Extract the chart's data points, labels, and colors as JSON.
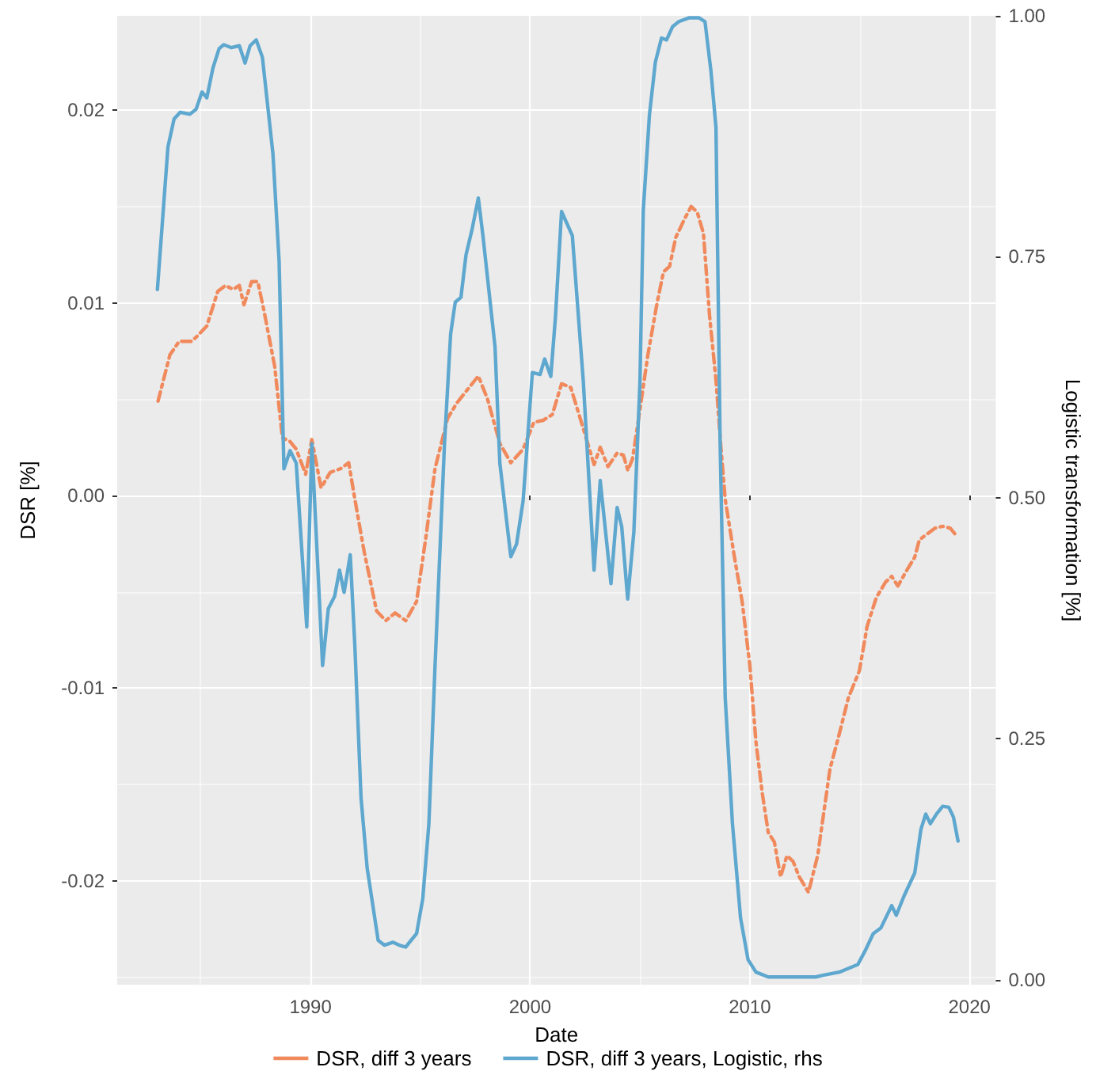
{
  "chart_data": {
    "type": "line",
    "xlabel": "Date",
    "ylabel": "DSR [%]",
    "y2label": "Logistic transformation [%]",
    "xlim": [
      1981.2,
      2021.2
    ],
    "xticks": [
      1990,
      2000,
      2010,
      2020
    ],
    "ylim": [
      -0.0254,
      0.0249
    ],
    "yticks": [
      -0.02,
      -0.01,
      {
        "value": 0,
        "label": "0.00"
      },
      0.01,
      0.02
    ],
    "y2lim": [
      -0.005,
      1.0
    ],
    "y2ticks": [
      {
        "value": 0,
        "label": "0.00"
      },
      0.25,
      {
        "value": 0.5,
        "label": "0.50"
      },
      0.75,
      {
        "value": 1,
        "label": "1.00"
      }
    ],
    "grid": true,
    "legend": "bottom",
    "marker": "none",
    "series": [
      {
        "name": "DSR, diff 3 years",
        "color": "#f08a5d",
        "line_style": "dashed",
        "x": [
          1983.06,
          1983.6,
          1984.02,
          1984.58,
          1984.87,
          1985.28,
          1985.78,
          1986.13,
          1986.47,
          1986.76,
          1986.97,
          1987.32,
          1987.6,
          1987.88,
          1988.37,
          1988.72,
          1989.07,
          1989.35,
          1989.78,
          1990.06,
          1990.48,
          1990.9,
          1991.39,
          1991.74,
          1992.02,
          1992.44,
          1993.01,
          1993.43,
          1993.85,
          1994.34,
          1994.83,
          1995.25,
          1995.67,
          1996.24,
          1996.66,
          1997.22,
          1997.64,
          1998.06,
          1998.62,
          1999.12,
          1999.68,
          2000.17,
          2000.59,
          2001.01,
          2001.43,
          2001.85,
          2002.28,
          2002.7,
          2002.91,
          2003.19,
          2003.54,
          2003.96,
          2004.24,
          2004.45,
          2004.66,
          2004.94,
          2005.36,
          2005.78,
          2006.07,
          2006.35,
          2006.63,
          2007.05,
          2007.33,
          2007.61,
          2007.89,
          2008.17,
          2008.46,
          2008.67,
          2008.88,
          2009.3,
          2009.65,
          2010.0,
          2010.28,
          2010.56,
          2010.84,
          2011.12,
          2011.4,
          2011.69,
          2011.97,
          2012.25,
          2012.67,
          2013.09,
          2013.65,
          2014.07,
          2014.49,
          2014.99,
          2015.34,
          2015.76,
          2016.18,
          2016.46,
          2016.74,
          2017.09,
          2017.51,
          2017.72,
          2018.08,
          2018.43,
          2018.78,
          2019.13,
          2019.41
        ],
        "values": [
          0.0049,
          0.0073,
          0.008,
          0.008,
          0.0083,
          0.0088,
          0.0106,
          0.0109,
          0.0107,
          0.0109,
          0.0099,
          0.0111,
          0.0111,
          0.0096,
          0.0067,
          0.003,
          0.0028,
          0.0024,
          0.0011,
          0.0029,
          0.0004,
          0.0012,
          0.0014,
          0.0017,
          -0.0002,
          -0.0029,
          -0.006,
          -0.0065,
          -0.0061,
          -0.0065,
          -0.0055,
          -0.0022,
          0.0014,
          0.004,
          0.0048,
          0.0056,
          0.0062,
          0.005,
          0.0027,
          0.0017,
          0.0024,
          0.0038,
          0.0039,
          0.0042,
          0.0058,
          0.0056,
          0.004,
          0.0024,
          0.0016,
          0.0025,
          0.0015,
          0.0022,
          0.0021,
          0.0013,
          0.0019,
          0.004,
          0.0073,
          0.01,
          0.0116,
          0.0119,
          0.0134,
          0.0144,
          0.015,
          0.0147,
          0.0136,
          0.0093,
          0.006,
          0.0027,
          -0.0002,
          -0.0032,
          -0.0055,
          -0.0088,
          -0.0128,
          -0.0154,
          -0.0175,
          -0.018,
          -0.0198,
          -0.0187,
          -0.019,
          -0.0198,
          -0.0206,
          -0.0187,
          -0.0142,
          -0.0124,
          -0.0105,
          -0.0091,
          -0.0068,
          -0.0053,
          -0.0045,
          -0.0042,
          -0.0047,
          -0.004,
          -0.0032,
          -0.0023,
          -0.002,
          -0.0017,
          -0.0016,
          -0.0017,
          -0.0021
        ]
      },
      {
        "name": "DSR, diff 3 years, Logistic, rhs",
        "color": "#5ea7cf",
        "line_style": "solid",
        "axis": "y2",
        "x": [
          1983.03,
          1983.51,
          1983.79,
          1984.07,
          1984.51,
          1984.79,
          1985.06,
          1985.28,
          1985.56,
          1985.84,
          1986.05,
          1986.4,
          1986.76,
          1987.02,
          1987.25,
          1987.53,
          1987.81,
          1988.29,
          1988.57,
          1988.79,
          1989.07,
          1989.35,
          1989.83,
          1990.06,
          1990.55,
          1990.81,
          1991.1,
          1991.32,
          1991.53,
          1991.81,
          1992.02,
          1992.3,
          1992.58,
          1993.08,
          1993.36,
          1993.76,
          1994.04,
          1994.33,
          1994.83,
          1995.11,
          1995.39,
          1995.67,
          1996.1,
          1996.38,
          1996.59,
          1996.85,
          1997.08,
          1997.36,
          1997.64,
          1997.85,
          1998.4,
          1998.62,
          1999.12,
          1999.38,
          1999.68,
          2000.1,
          2000.45,
          2000.66,
          2000.94,
          2001.15,
          2001.43,
          2001.92,
          2002.42,
          2002.91,
          2003.19,
          2003.68,
          2003.96,
          2004.17,
          2004.44,
          2004.72,
          2005.0,
          2005.15,
          2005.43,
          2005.7,
          2005.98,
          2006.21,
          2006.49,
          2006.77,
          2007.25,
          2007.68,
          2007.96,
          2008.23,
          2008.46,
          2008.65,
          2008.88,
          2009.21,
          2009.58,
          2009.92,
          2010.28,
          2010.84,
          2012.0,
          2013.0,
          2013.37,
          2014.07,
          2014.92,
          2015.27,
          2015.62,
          2015.97,
          2016.46,
          2016.67,
          2017.02,
          2017.51,
          2017.79,
          2018.01,
          2018.22,
          2018.5,
          2018.78,
          2019.06,
          2019.27,
          2019.48
        ],
        "values": [
          0.716,
          0.864,
          0.893,
          0.9,
          0.898,
          0.903,
          0.921,
          0.915,
          0.946,
          0.966,
          0.97,
          0.967,
          0.969,
          0.951,
          0.969,
          0.975,
          0.957,
          0.857,
          0.746,
          0.53,
          0.549,
          0.536,
          0.366,
          0.556,
          0.326,
          0.385,
          0.398,
          0.425,
          0.402,
          0.441,
          0.346,
          0.189,
          0.116,
          0.041,
          0.036,
          0.039,
          0.036,
          0.034,
          0.048,
          0.084,
          0.162,
          0.326,
          0.556,
          0.67,
          0.703,
          0.708,
          0.752,
          0.779,
          0.811,
          0.772,
          0.657,
          0.536,
          0.439,
          0.452,
          0.497,
          0.63,
          0.628,
          0.644,
          0.626,
          0.687,
          0.797,
          0.772,
          0.621,
          0.425,
          0.518,
          0.411,
          0.49,
          0.47,
          0.395,
          0.464,
          0.621,
          0.798,
          0.897,
          0.952,
          0.977,
          0.975,
          0.989,
          0.994,
          0.998,
          0.998,
          0.994,
          0.943,
          0.884,
          0.556,
          0.293,
          0.162,
          0.064,
          0.021,
          0.008,
          0.003,
          0.003,
          0.003,
          0.005,
          0.008,
          0.016,
          0.031,
          0.048,
          0.054,
          0.077,
          0.067,
          0.087,
          0.111,
          0.156,
          0.172,
          0.162,
          0.172,
          0.18,
          0.179,
          0.169,
          0.144
        ]
      }
    ]
  }
}
